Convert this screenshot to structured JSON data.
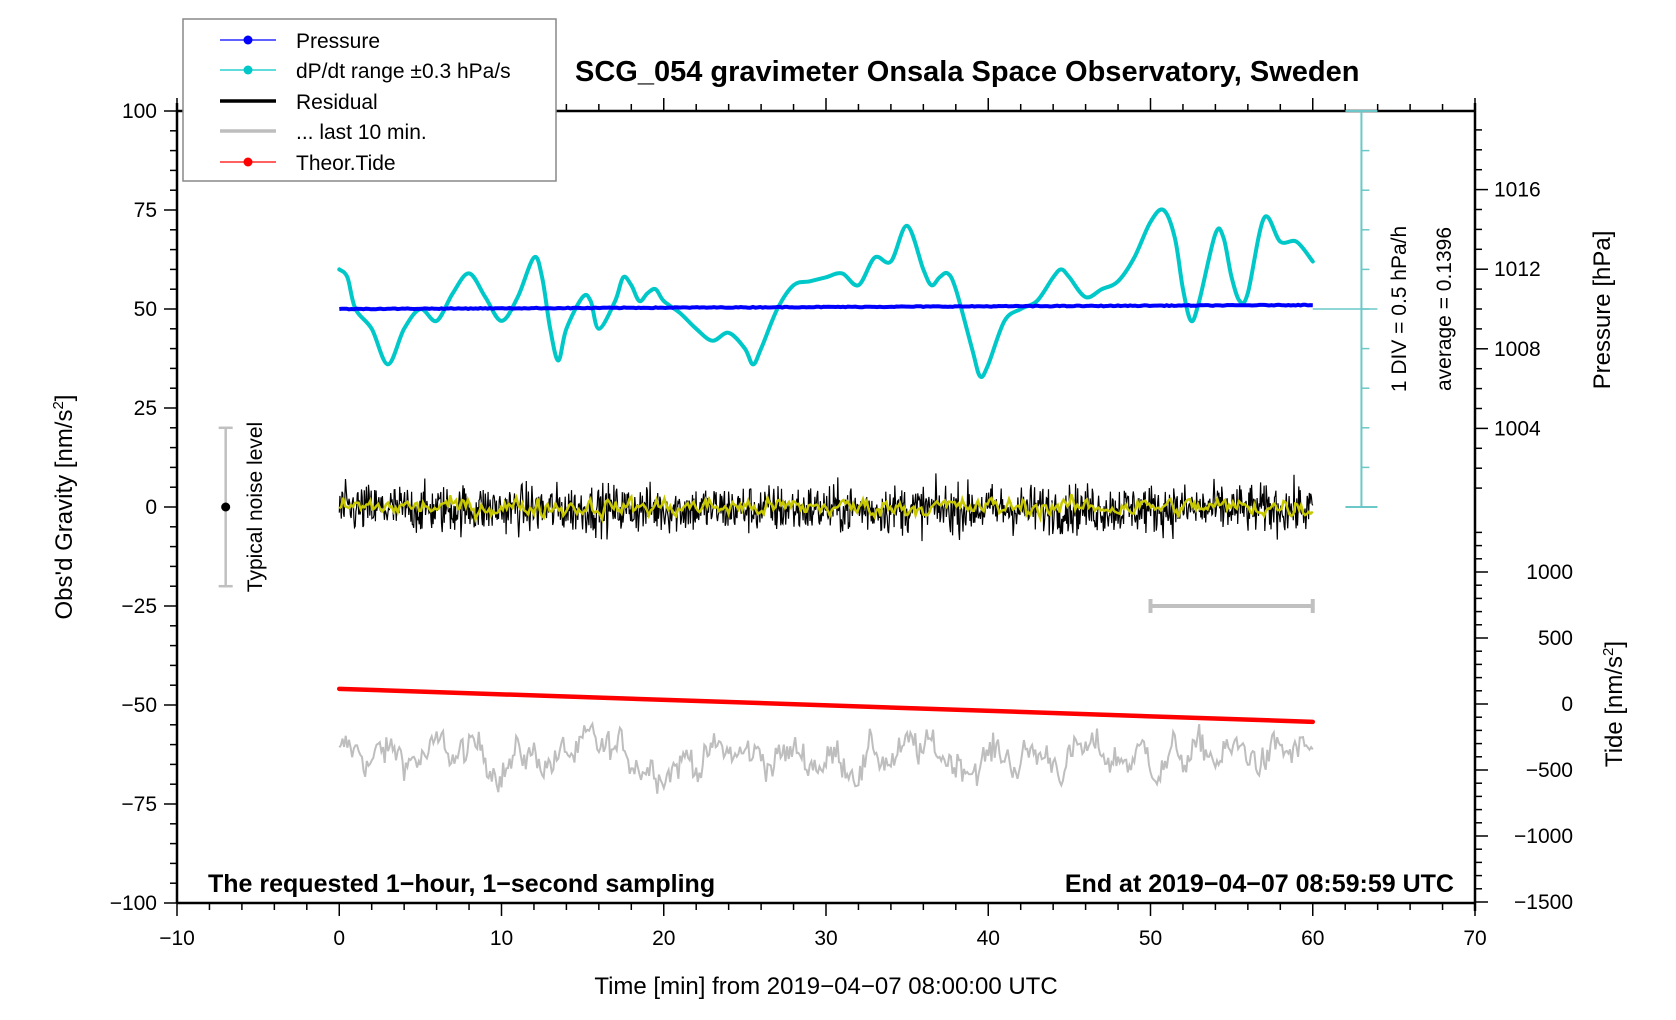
{
  "chart_data": {
    "type": "line",
    "title": "SCG_054 gravimeter Onsala Space Observatory, Sweden",
    "xlabel": "Time [min] from 2019−04−07 08:00:00 UTC",
    "ylabel_left": "Obs'd Gravity [nm/s",
    "ylabel_left_sup": "2",
    "ylabel_left_end": "]",
    "ylabel_right_pressure": "Pressure [hPa]",
    "ylabel_right_tide": "Tide [nm/s",
    "ylabel_right_tide_sup": "2",
    "ylabel_right_tide_end": "]",
    "xlim": [
      -10,
      70
    ],
    "ylim": [
      -100,
      100
    ],
    "pressure_lim": [
      1000,
      1019.5
    ],
    "tide_lim": [
      -1500,
      1000
    ],
    "x_ticks": [
      "−10",
      "0",
      "10",
      "20",
      "30",
      "40",
      "50",
      "60",
      "70"
    ],
    "x_tick_values": [
      -10,
      0,
      10,
      20,
      30,
      40,
      50,
      60,
      70
    ],
    "y_ticks": [
      "100",
      "75",
      "50",
      "25",
      "0",
      "−25",
      "−50",
      "−75",
      "−100"
    ],
    "y_tick_values": [
      100,
      75,
      50,
      25,
      0,
      -25,
      -50,
      -75,
      -100
    ],
    "pressure_ticks": [
      "1016",
      "1012",
      "1008",
      "1004"
    ],
    "pressure_tick_values": [
      1016,
      1012,
      1008,
      1004
    ],
    "tide_ticks": [
      "1000",
      "500",
      "0",
      "−500",
      "−1000",
      "−1500"
    ],
    "tide_tick_values": [
      1000,
      500,
      0,
      -500,
      -1000,
      -1500
    ],
    "legend": {
      "placement": "top-left",
      "entries": [
        {
          "label": "Pressure",
          "color": "#0000ff",
          "marker": true
        },
        {
          "label": "dP/dt range ±0.3 hPa/s",
          "color": "#00c8c8",
          "marker": true
        },
        {
          "label": "Residual",
          "color": "#000000",
          "marker": false
        },
        {
          "label": "... last 10 min.",
          "color": "#bebebe",
          "marker": false
        },
        {
          "label": "Theor.Tide",
          "color": "#ff0000",
          "marker": true
        }
      ]
    },
    "series": [
      {
        "name": "dP/dt",
        "color": "#00c8c8",
        "axis": "gravity",
        "x": [
          0,
          0.5,
          1,
          2,
          3,
          4,
          5,
          6,
          7,
          8,
          9,
          10,
          11,
          12,
          12.5,
          13,
          13.5,
          14,
          15,
          15.5,
          16,
          17,
          17.5,
          18,
          18.5,
          19,
          19.5,
          20,
          21,
          22,
          23,
          24,
          25,
          25.5,
          26,
          27,
          28,
          29,
          30,
          31,
          32,
          33,
          34,
          35,
          36,
          36.5,
          37,
          37.5,
          38,
          39,
          39.5,
          40,
          41,
          42,
          43,
          44,
          44.5,
          45,
          46,
          47,
          48,
          49,
          50,
          50.8,
          51.5,
          52,
          52.5,
          53,
          54,
          54.5,
          55,
          55.5,
          56,
          57,
          58,
          59,
          60
        ],
        "values": [
          60,
          58,
          50,
          45,
          36,
          45,
          50,
          47,
          54,
          59,
          53,
          47,
          53,
          63,
          58,
          45,
          37,
          45,
          53,
          52,
          45,
          52,
          58,
          56,
          52,
          54,
          55,
          52,
          49,
          45,
          42,
          44,
          40,
          36,
          40,
          50,
          56,
          57,
          58,
          59,
          56,
          63,
          62,
          71,
          60,
          56,
          58,
          59,
          55,
          40,
          33,
          36,
          47,
          50,
          52,
          58,
          60,
          58,
          53,
          55,
          57,
          63,
          72,
          75,
          68,
          55,
          47,
          52,
          69,
          68,
          58,
          52,
          54,
          73,
          67,
          67,
          62
        ]
      },
      {
        "name": "Pressure",
        "color": "#0000ff",
        "axis": "pressure",
        "x": [
          0,
          60
        ],
        "values": [
          1010.0,
          1010.2
        ]
      },
      {
        "name": "Residual",
        "color": "#000000",
        "axis": "gravity",
        "x_range": [
          0,
          60
        ],
        "mean": 0,
        "amplitude": 8
      },
      {
        "name": "Residual (smoothed)",
        "color": "#c8c800",
        "axis": "gravity",
        "x_range": [
          0,
          60
        ],
        "mean": 0,
        "amplitude": 1.5
      },
      {
        "name": "... last 10 min.",
        "color": "#bebebe",
        "axis": "gravity",
        "x_range": [
          0,
          60
        ],
        "mean": -63,
        "amplitude": 8
      },
      {
        "name": "Theor.Tide",
        "color": "#ff0000",
        "axis": "tide",
        "x": [
          0,
          60
        ],
        "values": [
          115,
          -135
        ]
      }
    ],
    "annotations": {
      "noise_label": "Typical noise level",
      "noise_range": [
        -20,
        20
      ],
      "noise_x": -7,
      "div_label": "1 DIV = 0.5 hPa/h",
      "average_label": "average = 0.1396",
      "dpdt_axis_x": 63,
      "dpdt_axis_range": [
        0,
        100
      ],
      "dpdt_axis_reference": 50,
      "last10_bar_x": [
        50,
        60
      ],
      "last10_bar_y": -25,
      "bottom_left": "The requested 1−hour, 1−second sampling",
      "bottom_right": "End at 2019−04−07 08:59:59 UTC"
    },
    "grid": false
  }
}
